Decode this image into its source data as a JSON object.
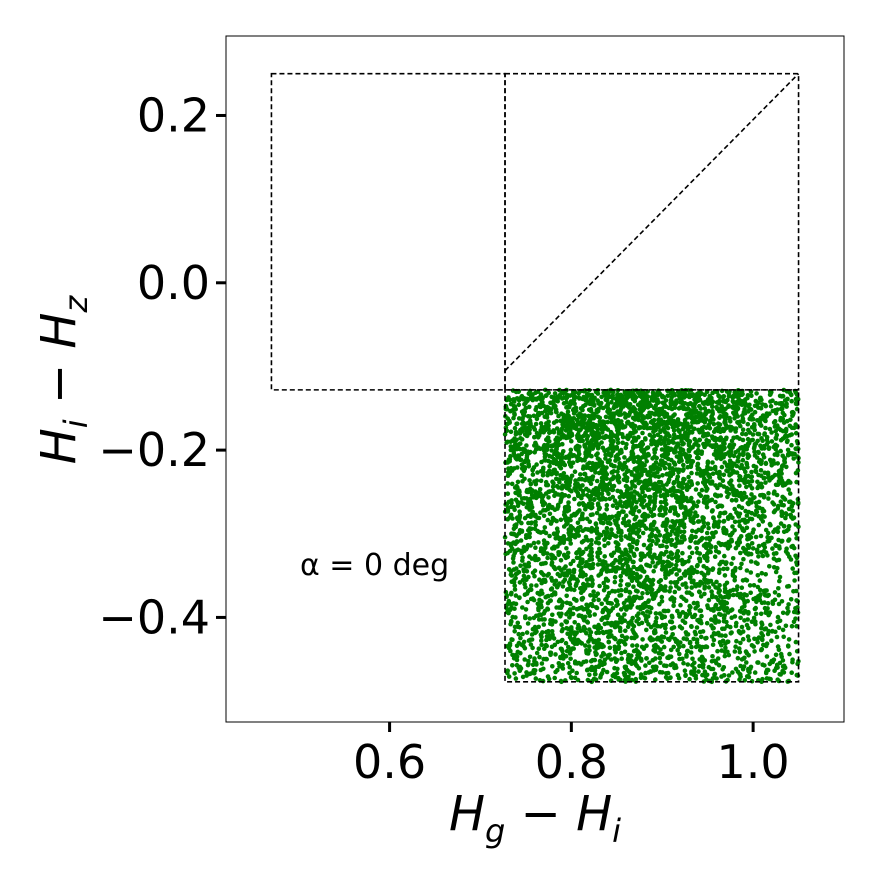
{
  "chart_data": {
    "type": "scatter",
    "title": "",
    "xlabel": "H_g − H_i",
    "ylabel": "H_i − H_z",
    "xlim": [
      0.42,
      1.1
    ],
    "ylim": [
      -0.525,
      0.295
    ],
    "xticks": [
      0.6,
      0.8,
      1.0
    ],
    "xtick_labels": [
      "0.6",
      "0.8",
      "1.0"
    ],
    "yticks": [
      0.2,
      0.0,
      -0.2,
      -0.4
    ],
    "ytick_labels": [
      "0.2",
      "0.0",
      "−0.2",
      "−0.4"
    ],
    "annotation": "α = 0 deg",
    "annotation_position": {
      "x": 0.5,
      "y": -0.35
    },
    "grid": false,
    "legend": "none",
    "scatter_color": "#008000",
    "line_color": "#000000",
    "regions": [
      {
        "name": "left-box",
        "x": [
          0.47,
          0.727
        ],
        "y": [
          -0.128,
          0.25
        ]
      },
      {
        "name": "upper-right-box",
        "x": [
          0.727,
          1.05
        ],
        "y": [
          -0.128,
          0.25
        ]
      },
      {
        "name": "lower-right-box",
        "x": [
          0.727,
          1.05
        ],
        "y": [
          -0.477,
          -0.128
        ]
      }
    ],
    "diagonal": {
      "x": [
        0.727,
        1.05
      ],
      "y": [
        -0.105,
        0.25
      ]
    },
    "scatter_region": {
      "x": [
        0.727,
        1.05
      ],
      "y": [
        -0.477,
        -0.128
      ]
    },
    "scatter_count": 5200
  }
}
